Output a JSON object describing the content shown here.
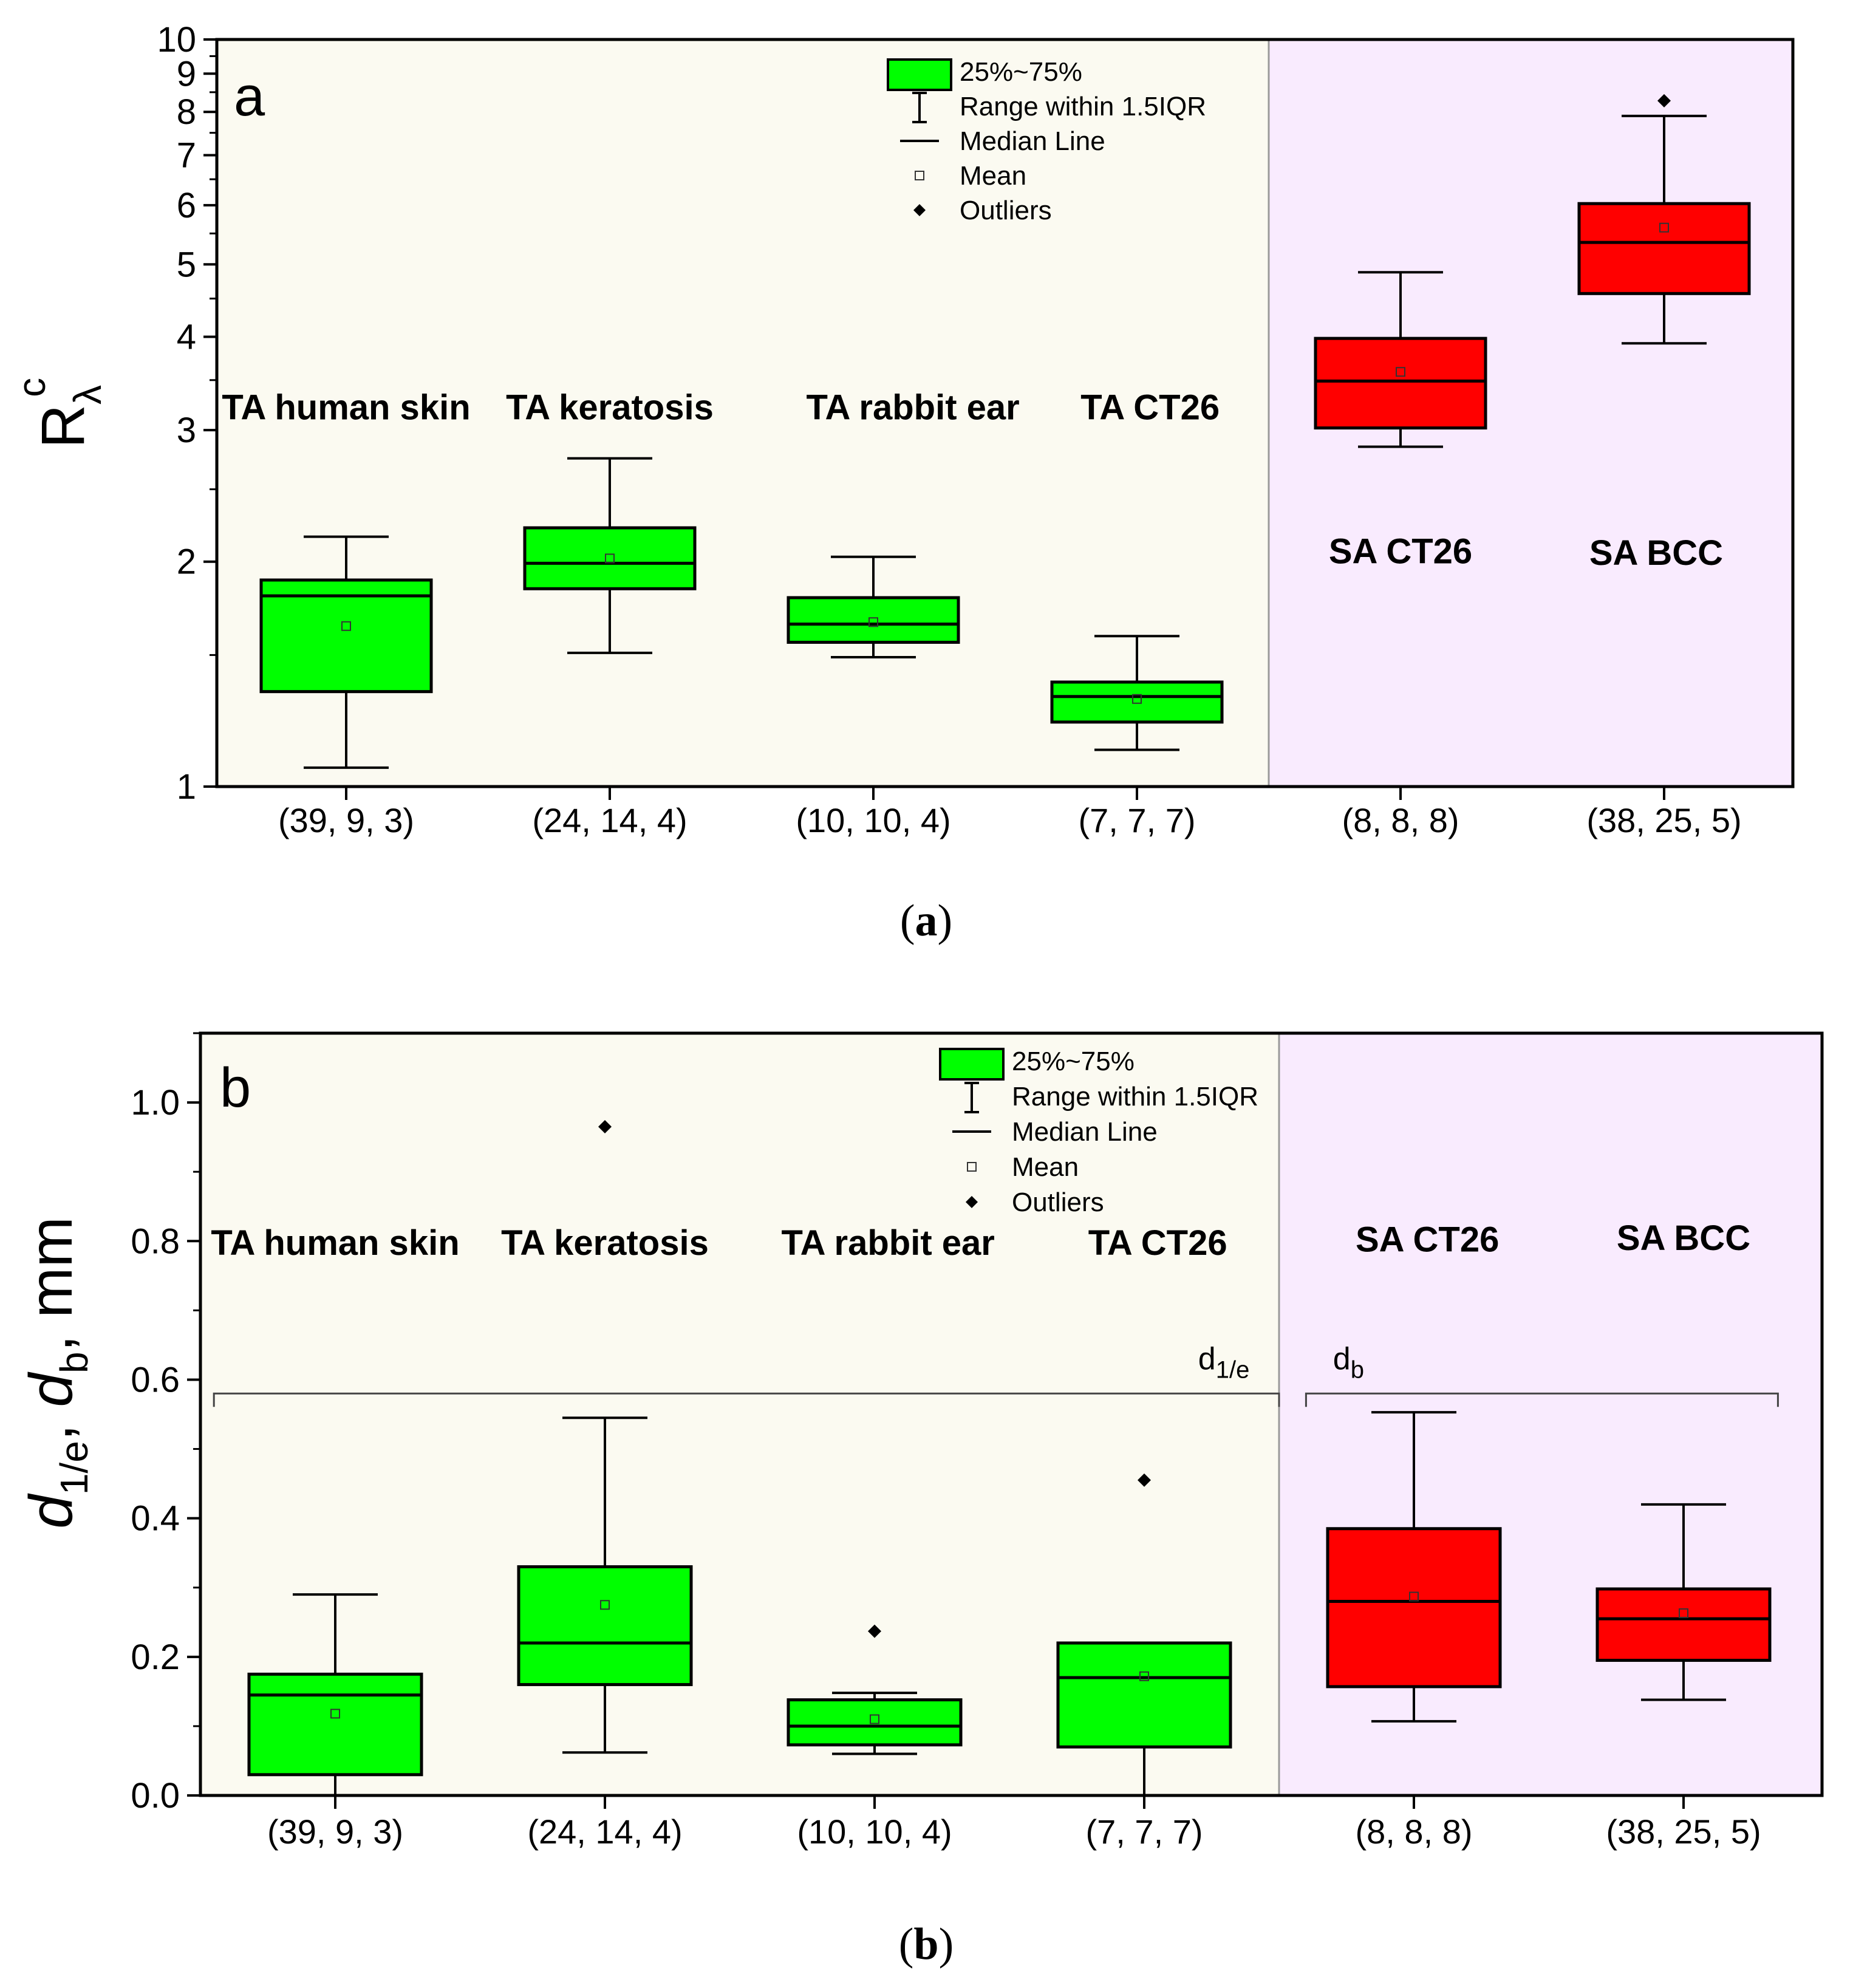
{
  "chart_data": [
    {
      "panel": "a",
      "caption": "(a)",
      "type": "box",
      "yscale": "log",
      "ylabel_main": "R",
      "ylabel_sub": "λ",
      "ylabel_sup": "c",
      "ylim": [
        1,
        10
      ],
      "yticks": [
        1,
        2,
        3,
        4,
        5,
        6,
        7,
        8,
        9,
        10
      ],
      "ytick_labels": [
        "1",
        "2",
        "3",
        "4",
        "5",
        "6",
        "7",
        "8",
        "9",
        "10"
      ],
      "categories": [
        "(39, 9, 3)",
        "(24, 14, 4)",
        "(10, 10, 4)",
        "(7, 7, 7)",
        "(8, 8, 8)",
        "(38, 25, 5)"
      ],
      "regions": [
        {
          "name": "TA",
          "from": 0,
          "to": 4,
          "color": "#fbfaf1"
        },
        {
          "name": "SA",
          "from": 4,
          "to": 6,
          "color": "#f9ebfe"
        }
      ],
      "boxes": [
        {
          "group": "TA human skin",
          "q1": 1.34,
          "median": 1.8,
          "q3": 1.89,
          "whisker_low": 1.06,
          "whisker_high": 2.16,
          "mean": 1.64,
          "outliers": [],
          "color": "#00ff00"
        },
        {
          "group": "TA keratosis",
          "q1": 1.84,
          "median": 1.99,
          "q3": 2.22,
          "whisker_low": 1.51,
          "whisker_high": 2.75,
          "mean": 2.02,
          "outliers": [],
          "color": "#00ff00"
        },
        {
          "group": "TA rabbit ear",
          "q1": 1.56,
          "median": 1.65,
          "q3": 1.79,
          "whisker_low": 1.49,
          "whisker_high": 2.03,
          "mean": 1.66,
          "outliers": [],
          "color": "#00ff00"
        },
        {
          "group": "TA CT26",
          "q1": 1.22,
          "median": 1.32,
          "q3": 1.38,
          "whisker_low": 1.12,
          "whisker_high": 1.59,
          "mean": 1.31,
          "outliers": [],
          "color": "#00ff00"
        },
        {
          "group": "SA CT26",
          "q1": 3.02,
          "median": 3.49,
          "q3": 3.98,
          "whisker_low": 2.85,
          "whisker_high": 4.88,
          "mean": 3.59,
          "outliers": [],
          "color": "#ff0000"
        },
        {
          "group": "SA BCC",
          "q1": 4.57,
          "median": 5.35,
          "q3": 6.03,
          "whisker_low": 3.92,
          "whisker_high": 7.9,
          "mean": 5.6,
          "outliers": [
            8.28
          ],
          "color": "#ff0000"
        }
      ],
      "group_labels": [
        {
          "text": "TA human skin",
          "x": 0.0,
          "y": 3.1
        },
        {
          "text": "TA keratosis",
          "x": 1.0,
          "y": 3.1
        },
        {
          "text": "TA rabbit ear",
          "x": 2.15,
          "y": 3.1
        },
        {
          "text": "TA CT26",
          "x": 3.05,
          "y": 3.1
        },
        {
          "text": "SA CT26",
          "x": 4.0,
          "y": 1.99
        },
        {
          "text": "SA BCC",
          "x": 4.97,
          "y": 1.98
        }
      ],
      "legend": {
        "position": "top-center",
        "entries": [
          "25%~75%",
          "Range within 1.5IQR",
          "Median Line",
          "Mean",
          "Outliers"
        ]
      }
    },
    {
      "panel": "b",
      "caption": "(b)",
      "type": "box",
      "yscale": "linear",
      "ylabel_parts": [
        "d",
        "1/e",
        ", ",
        "d",
        "b",
        ", mm"
      ],
      "ylim": [
        0,
        1.1
      ],
      "yticks": [
        0,
        0.2,
        0.4,
        0.6,
        0.8,
        1.0
      ],
      "ytick_labels": [
        "0.0",
        "0.2",
        "0.4",
        "0.6",
        "0.8",
        "1.0"
      ],
      "categories": [
        "(39, 9, 3)",
        "(24, 14, 4)",
        "(10, 10, 4)",
        "(7, 7, 7)",
        "(8, 8, 8)",
        "(38, 25, 5)"
      ],
      "regions": [
        {
          "name": "TA",
          "from": 0,
          "to": 4,
          "color": "#fbfaf1"
        },
        {
          "name": "SA",
          "from": 4,
          "to": 6,
          "color": "#f9ebfe"
        }
      ],
      "boxes": [
        {
          "group": "TA human skin",
          "q1": 0.03,
          "median": 0.145,
          "q3": 0.175,
          "whisker_low": 0.0,
          "whisker_high": 0.29,
          "mean": 0.118,
          "outliers": [],
          "color": "#00ff00"
        },
        {
          "group": "TA keratosis",
          "q1": 0.16,
          "median": 0.22,
          "q3": 0.33,
          "whisker_low": 0.062,
          "whisker_high": 0.545,
          "mean": 0.275,
          "outliers": [
            0.965
          ],
          "color": "#00ff00"
        },
        {
          "group": "TA rabbit ear",
          "q1": 0.073,
          "median": 0.1,
          "q3": 0.138,
          "whisker_low": 0.06,
          "whisker_high": 0.148,
          "mean": 0.11,
          "outliers": [
            0.237
          ],
          "color": "#00ff00"
        },
        {
          "group": "TA CT26",
          "q1": 0.07,
          "median": 0.17,
          "q3": 0.22,
          "whisker_low": 0.0,
          "whisker_high": 0.22,
          "mean": 0.172,
          "outliers": [
            0.455
          ],
          "color": "#00ff00"
        },
        {
          "group": "SA CT26",
          "q1": 0.157,
          "median": 0.28,
          "q3": 0.385,
          "whisker_low": 0.107,
          "whisker_high": 0.553,
          "mean": 0.287,
          "outliers": [],
          "color": "#ff0000"
        },
        {
          "group": "SA BCC",
          "q1": 0.195,
          "median": 0.255,
          "q3": 0.298,
          "whisker_low": 0.138,
          "whisker_high": 0.42,
          "mean": 0.263,
          "outliers": [],
          "color": "#ff0000"
        }
      ],
      "group_labels": [
        {
          "text": "TA human skin",
          "x": 0.0,
          "y": 0.78
        },
        {
          "text": "TA keratosis",
          "x": 1.0,
          "y": 0.78
        },
        {
          "text": "TA rabbit ear",
          "x": 2.05,
          "y": 0.78
        },
        {
          "text": "TA CT26",
          "x": 3.05,
          "y": 0.78
        },
        {
          "text": "SA CT26",
          "x": 4.05,
          "y": 0.785
        },
        {
          "text": "SA BCC",
          "x": 5.0,
          "y": 0.787
        }
      ],
      "brackets": [
        {
          "label_main": "d",
          "label_sub": "1/e",
          "from": -0.45,
          "to": 3.5,
          "y": 0.58,
          "label_x": 3.2
        },
        {
          "label_main": "d",
          "label_sub": "b",
          "from": 3.6,
          "to": 5.35,
          "y": 0.58,
          "label_x": 3.7
        }
      ],
      "legend": {
        "position": "top-center",
        "entries": [
          "25%~75%",
          "Range within 1.5IQR",
          "Median Line",
          "Mean",
          "Outliers"
        ]
      }
    }
  ]
}
